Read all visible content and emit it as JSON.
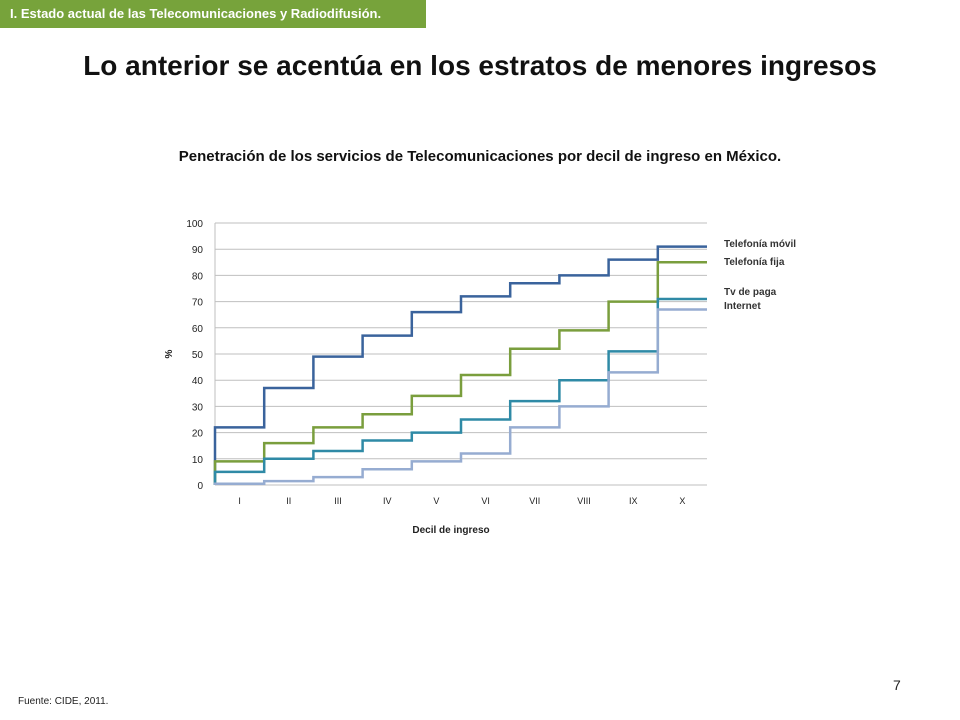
{
  "header": {
    "section_tab": "I. Estado actual de las Telecomunicaciones y Radiodifusión.",
    "title": "Lo anterior se acentúa en los estratos de menores ingresos"
  },
  "chart_title": "Penetración de los servicios de Telecomunicaciones por decil de ingreso en México.",
  "footer": {
    "source": "Fuente: CIDE, 2011.",
    "page_number": "7"
  },
  "colors": {
    "telefonia_movil": "#3a639c",
    "telefonia_fija": "#7a9e3d",
    "tv_de_paga": "#2f8aa6",
    "internet": "#96acd1",
    "grid": "#bfbfbf",
    "section_tab_bg": "#77a33b"
  },
  "chart_data": {
    "type": "line",
    "step": true,
    "categories": [
      "I",
      "II",
      "III",
      "IV",
      "V",
      "VI",
      "VII",
      "VIII",
      "IX",
      "X"
    ],
    "xlabel": "Decil de ingreso",
    "ylabel": "%",
    "ylim": [
      0,
      100
    ],
    "yticks": [
      0,
      10,
      20,
      30,
      40,
      50,
      60,
      70,
      80,
      90,
      100
    ],
    "grid": true,
    "legend_position": "right",
    "series": [
      {
        "name": "Telefonía móvil",
        "color": "#3a639c",
        "values": [
          22,
          37,
          49,
          57,
          66,
          72,
          77,
          80,
          86,
          91
        ]
      },
      {
        "name": "Telefonía fija",
        "color": "#7a9e3d",
        "values": [
          9,
          16,
          22,
          27,
          34,
          42,
          52,
          59,
          70,
          85
        ]
      },
      {
        "name": "Tv de paga",
        "color": "#2f8aa6",
        "values": [
          5,
          10,
          13,
          17,
          20,
          25,
          32,
          40,
          51,
          71
        ]
      },
      {
        "name": "Internet",
        "color": "#96acd1",
        "values": [
          0.5,
          1.5,
          3,
          6,
          9,
          12,
          22,
          30,
          43,
          67
        ]
      }
    ]
  }
}
